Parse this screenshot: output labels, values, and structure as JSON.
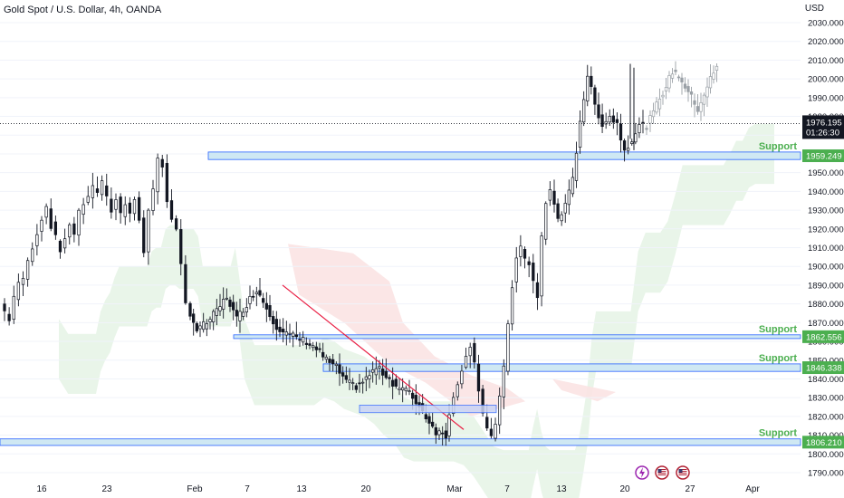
{
  "header": {
    "symbol_title": "Gold Spot / U.S. Dollar, 4h, OANDA",
    "currency": "USD"
  },
  "price_badge": {
    "price": "1976.195",
    "countdown": "01:26:30"
  },
  "colors": {
    "candle": "#131722",
    "support_fill": "#cfe8f3",
    "support_border": "#2962ff",
    "support_label": "#4caf50",
    "badge_green": "#4caf50",
    "trendline": "#e91e43",
    "cloud_bull": "#e4f2e4",
    "cloud_bear": "#fbe3e3",
    "bracket_fill": "#c9d3f5",
    "bracket_border": "#2962ff"
  },
  "events": [
    {
      "icon": "lightning-icon",
      "color": "#9c27b0"
    },
    {
      "icon": "us-flag-icon",
      "color": "#b22234"
    },
    {
      "icon": "us-flag-icon",
      "color": "#b22234"
    }
  ],
  "chart_data": {
    "type": "candlestick",
    "title": "Gold Spot / U.S. Dollar, 4h, OANDA",
    "y_unit": "USD",
    "ylim": [
      1785,
      2035
    ],
    "y_ticks": [
      1790,
      1800,
      1810,
      1820,
      1830,
      1840,
      1850,
      1860,
      1870,
      1880,
      1890,
      1900,
      1910,
      1920,
      1930,
      1940,
      1950,
      1960,
      1970,
      1980,
      1990,
      2000,
      2010,
      2020,
      2030
    ],
    "x_ticks": [
      "16",
      "23",
      "Feb",
      "7",
      "13",
      "20",
      "Mar",
      "7",
      "13",
      "20",
      "27",
      "Apr"
    ],
    "current_price": 1976.195,
    "support_levels": [
      {
        "label": "Support",
        "value": "1959.249",
        "range": [
          1957,
          1961
        ]
      },
      {
        "label": "Support",
        "value": "1862.556",
        "range": [
          1861.5,
          1863.5
        ]
      },
      {
        "label": "Support",
        "value": "1846.338",
        "range": [
          1844,
          1848
        ]
      },
      {
        "label": "Support",
        "value": "1806.210",
        "range": [
          1804.5,
          1808
        ]
      }
    ],
    "trendline": {
      "from": 1890,
      "to": 1813
    },
    "consolidation_box": {
      "range": [
        1822,
        1826
      ]
    },
    "price_path": [
      1880,
      1876,
      1872,
      1884,
      1890,
      1894,
      1902,
      1911,
      1918,
      1926,
      1932,
      1922,
      1915,
      1908,
      1916,
      1922,
      1918,
      1928,
      1934,
      1938,
      1942,
      1940,
      1944,
      1936,
      1930,
      1936,
      1928,
      1934,
      1930,
      1936,
      1924,
      1908,
      1930,
      1940,
      1958,
      1954,
      1936,
      1924,
      1918,
      1900,
      1880,
      1866,
      1870,
      1876,
      1884,
      1872,
      1880,
      1888,
      1878,
      1868,
      1864,
      1862,
      1860,
      1856,
      1850,
      1846,
      1838,
      1836,
      1840,
      1846,
      1842,
      1836,
      1834,
      1828,
      1820,
      1812,
      1810,
      1822,
      1832,
      1836,
      1846,
      1853,
      1858,
      1849,
      1833,
      1820,
      1812,
      1810,
      1817,
      1830,
      1845,
      1870,
      1890,
      1904,
      1910,
      1904,
      1900,
      1892,
      1884,
      1916,
      1934,
      1940,
      1926,
      1932,
      1946,
      1978,
      2002,
      1986,
      1976,
      1980,
      1976,
      1962,
      1968,
      1975,
      1982,
      1990,
      1996,
      2004,
      2002,
      1996,
      1990,
      1984,
      1992,
      2000,
      2006
    ]
  }
}
